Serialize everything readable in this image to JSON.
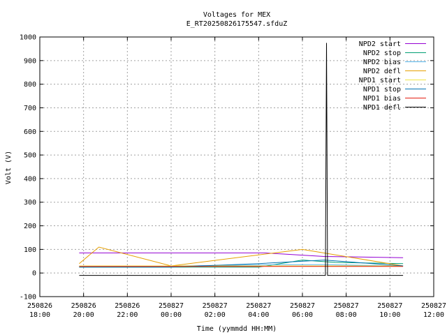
{
  "chart_data": {
    "type": "line",
    "title": "Voltages for MEX",
    "subtitle": "E_RT20250826175547.sfduZ",
    "xlabel": "Time (yymmdd HH:MM)",
    "ylabel": "Volt (V)",
    "xlim": [
      18,
      36
    ],
    "ylim": [
      -100,
      1000
    ],
    "yticks": [
      -100,
      0,
      100,
      200,
      300,
      400,
      500,
      600,
      700,
      800,
      900,
      1000
    ],
    "xticks": [
      {
        "t": 18,
        "date": "250826",
        "time": "18:00"
      },
      {
        "t": 20,
        "date": "250826",
        "time": "20:00"
      },
      {
        "t": 22,
        "date": "250826",
        "time": "22:00"
      },
      {
        "t": 24,
        "date": "250827",
        "time": "00:00"
      },
      {
        "t": 26,
        "date": "250827",
        "time": "02:00"
      },
      {
        "t": 28,
        "date": "250827",
        "time": "04:00"
      },
      {
        "t": 30,
        "date": "250827",
        "time": "06:00"
      },
      {
        "t": 32,
        "date": "250827",
        "time": "08:00"
      },
      {
        "t": 34,
        "date": "250827",
        "time": "10:00"
      },
      {
        "t": 36,
        "date": "250827",
        "time": "12:00"
      }
    ],
    "grid": true,
    "legend_position": "top-right",
    "series": [
      {
        "name": "NPD2 start",
        "color": "#9400d3",
        "x": [
          19.8,
          23.5,
          26,
          28.3,
          31,
          34.6
        ],
        "y": [
          85,
          85,
          85,
          85,
          70,
          65
        ]
      },
      {
        "name": "NPD2 stop",
        "color": "#009e73",
        "x": [
          19.8,
          24,
          28,
          30,
          31.5,
          34.6
        ],
        "y": [
          25,
          25,
          25,
          55,
          45,
          40
        ]
      },
      {
        "name": "NPD2 bias",
        "color": "#56b4e9",
        "x": [
          19.8,
          24,
          29,
          31,
          34.6
        ],
        "y": [
          30,
          30,
          35,
          35,
          30
        ]
      },
      {
        "name": "NPD2 defl",
        "color": "#e69f00",
        "x": [
          19.8,
          20.7,
          24,
          30,
          34.6
        ],
        "y": [
          40,
          110,
          30,
          100,
          30
        ]
      },
      {
        "name": "NPD1 start",
        "color": "#f0e442",
        "x": [
          19.8,
          24,
          28,
          34.6
        ],
        "y": [
          30,
          30,
          30,
          30
        ]
      },
      {
        "name": "NPD1 stop",
        "color": "#0072b2",
        "x": [
          19.8,
          24,
          28,
          31,
          34.6
        ],
        "y": [
          25,
          25,
          40,
          55,
          30
        ]
      },
      {
        "name": "NPD1 bias",
        "color": "#e51e10",
        "x": [
          19.8,
          22,
          26,
          30,
          34.6
        ],
        "y": [
          28,
          28,
          28,
          28,
          28
        ]
      },
      {
        "name": "NPD1 defl",
        "color": "#000000",
        "x": [
          19.8,
          31.05,
          31.1,
          31.15,
          34.6
        ],
        "y": [
          -10,
          -10,
          975,
          -10,
          -10
        ]
      }
    ]
  }
}
